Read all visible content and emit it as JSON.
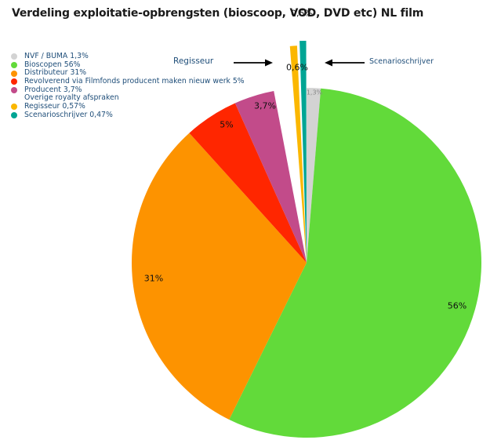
{
  "chart_data": {
    "type": "pie",
    "title": "Verdeling exploitatie-opbrengsten (bioscoop, VOD, DVD etc) NL film",
    "legend_position": "top-left",
    "slices": [
      {
        "name": "NVF / BUMA 1,3%",
        "value": 1.3,
        "label": "1,3%",
        "color": "#d3d3d3"
      },
      {
        "name": "Bioscopen 56%",
        "value": 56,
        "label": "56%",
        "color": "#62da3a"
      },
      {
        "name": "Distributeur 31%",
        "value": 31,
        "label": "31%",
        "color": "#fd9300"
      },
      {
        "name": "Revolverend via Filmfonds producent maken nieuw werk 5%",
        "value": 5,
        "label": "5%",
        "color": "#ff2600"
      },
      {
        "name": "Producent 3,7%",
        "value": 3.7,
        "label": "3,7%",
        "color": "#c24b8a"
      },
      {
        "name": "Overige royalty afspraken",
        "value": 1.9,
        "label": "",
        "color": "#ffffff"
      },
      {
        "name": "Regisseur 0,57%",
        "value": 0.57,
        "label": "0,6%",
        "color": "#fbb700"
      },
      {
        "name": "Scenarioschrijver 0,47%",
        "value": 0.47,
        "label": "0,5%",
        "color": "#00a594"
      }
    ],
    "annotations": [
      "Regisseur",
      "Scenarioschrijver"
    ]
  },
  "title": "Verdeling exploitatie-opbrengsten (bioscoop, VOD, DVD etc) NL film",
  "legend": [
    {
      "label": "NVF / BUMA 1,3%",
      "color": "#d3d3d3"
    },
    {
      "label": "Bioscopen 56%",
      "color": "#62da3a"
    },
    {
      "label": "Distributeur 31%",
      "color": "#fd9300"
    },
    {
      "label": "Revolverend via Filmfonds producent maken nieuw werk 5%",
      "color": "#ff2600"
    },
    {
      "label": "Producent 3,7%",
      "color": "#c24b8a"
    },
    {
      "label": "Overige royalty afspraken",
      "color": ""
    },
    {
      "label": "Regisseur 0,57%",
      "color": "#fbb700"
    },
    {
      "label": "Scenarioschrijver 0,47%",
      "color": "#00a594"
    }
  ],
  "annotations": {
    "regisseur": "Regisseur",
    "scenarioschrijver": "Scenarioschrijver"
  },
  "labels": {
    "nvf": "1,3%",
    "bioscopen": "56%",
    "distributeur": "31%",
    "revolverend": "5%",
    "producent": "3,7%",
    "regisseur": "0,6%",
    "scenarioschrijver": "0,5%"
  }
}
